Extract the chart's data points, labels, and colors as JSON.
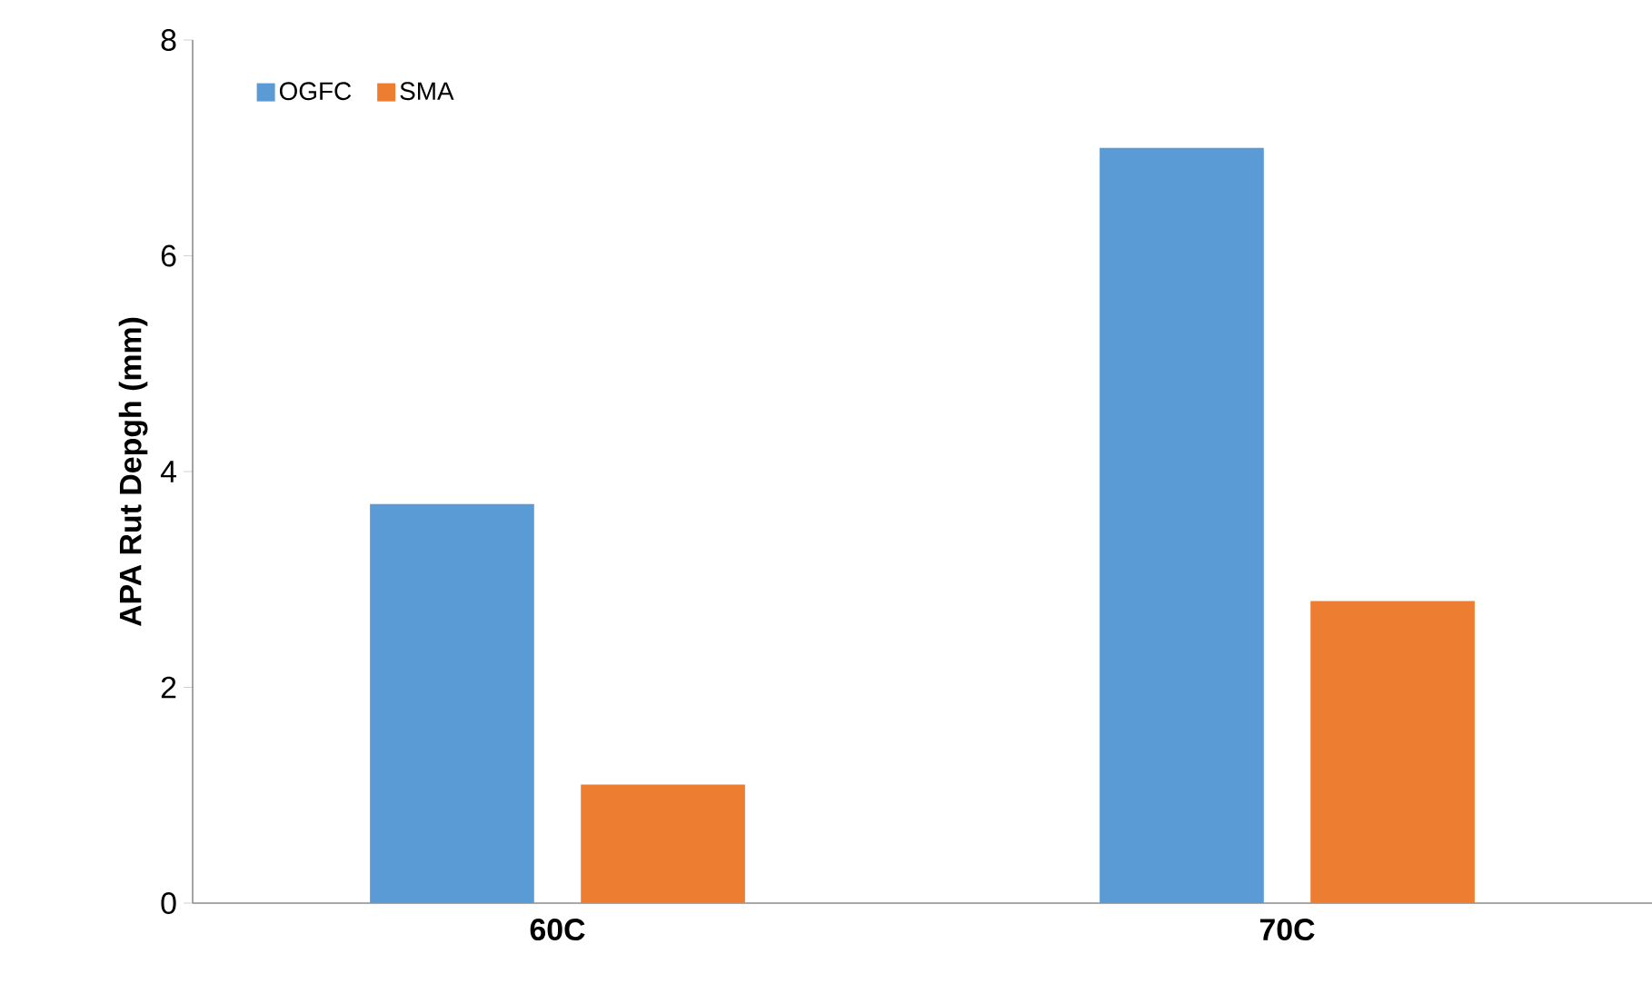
{
  "chart_data": {
    "type": "bar",
    "ylabel": "APA Rut Depgh (mm)",
    "categories": [
      "60C",
      "70C"
    ],
    "series": [
      {
        "name": "OGFC",
        "color": "#5b9bd5",
        "values": [
          3.7,
          7.0
        ]
      },
      {
        "name": "SMA",
        "color": "#ed7d31",
        "values": [
          1.1,
          2.8
        ]
      }
    ],
    "ylim": [
      0,
      8
    ],
    "yticks": [
      0,
      2,
      4,
      6,
      8
    ],
    "legend": "top left"
  }
}
